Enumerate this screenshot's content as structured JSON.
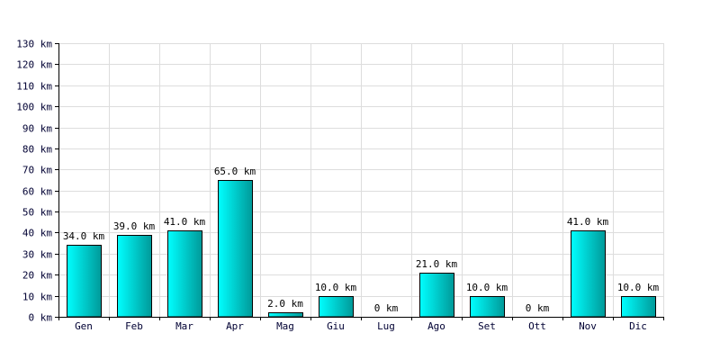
{
  "chart_data": {
    "type": "bar",
    "categories": [
      "Gen",
      "Feb",
      "Mar",
      "Apr",
      "Mag",
      "Giu",
      "Lug",
      "Ago",
      "Set",
      "Ott",
      "Nov",
      "Dic"
    ],
    "values": [
      34.0,
      39.0,
      41.0,
      65.0,
      2.0,
      10.0,
      0,
      21.0,
      10.0,
      0,
      41.0,
      10.0
    ],
    "data_labels": [
      "34.0 km",
      "39.0 km",
      "41.0 km",
      "65.0 km",
      "2.0 km",
      "10.0 km",
      "0 km",
      "21.0 km",
      "10.0 km",
      "0 km",
      "41.0 km",
      "10.0 km"
    ],
    "y_ticks": [
      0,
      10,
      20,
      30,
      40,
      50,
      60,
      70,
      80,
      90,
      100,
      110,
      120,
      130
    ],
    "y_tick_labels": [
      "0 km",
      "10 km",
      "20 km",
      "30 km",
      "40 km",
      "50 km",
      "60 km",
      "70 km",
      "80 km",
      "90 km",
      "100 km",
      "110 km",
      "120 km",
      "130 km"
    ],
    "ylim": [
      0,
      130
    ],
    "grid": true,
    "title": "",
    "xlabel": "",
    "ylabel": "",
    "colors": {
      "bar_light": "#00ffff",
      "bar_dark": "#009999",
      "bar_outline": "#000000",
      "grid": "#dddddd",
      "axis": "#000000"
    }
  }
}
